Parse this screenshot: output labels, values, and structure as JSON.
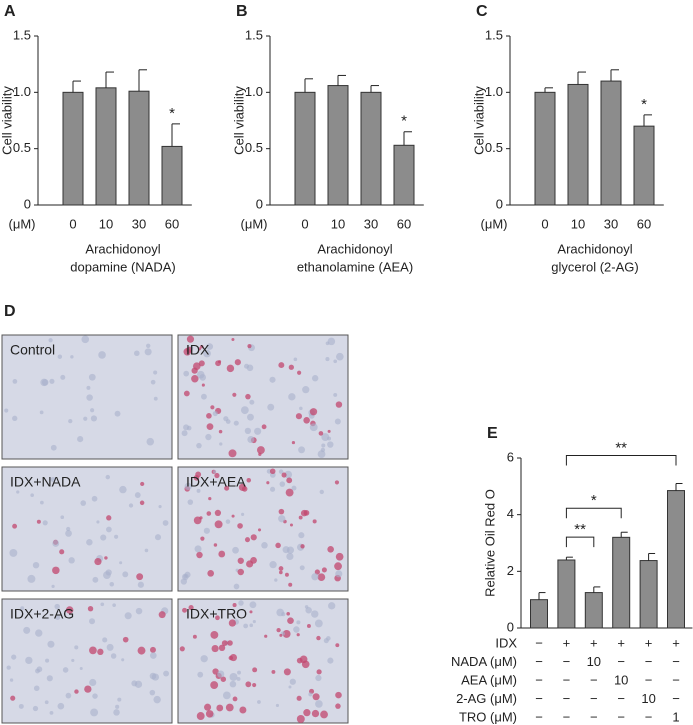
{
  "chart_data": [
    {
      "type": "bar",
      "panel_label": "A",
      "ylabel": "Cell viability",
      "unit_label": "(μM)",
      "categories": [
        "0",
        "10",
        "30",
        "60"
      ],
      "values": [
        1.0,
        1.04,
        1.01,
        0.52
      ],
      "errors": [
        0.1,
        0.14,
        0.19,
        0.2
      ],
      "significance": [
        null,
        null,
        null,
        "*"
      ],
      "xlabel": [
        "Arachidonoyl",
        "dopamine (NADA)"
      ],
      "ylim": [
        0,
        1.5
      ],
      "yticks": [
        0,
        0.5,
        {
          "value": 1,
          "label": "1.0"
        },
        1.5
      ],
      "color": "#8c8c8c"
    },
    {
      "type": "bar",
      "panel_label": "B",
      "ylabel": "Cell viability",
      "unit_label": "(μM)",
      "categories": [
        "0",
        "10",
        "30",
        "60"
      ],
      "values": [
        1.0,
        1.06,
        1.0,
        0.53
      ],
      "errors": [
        0.12,
        0.09,
        0.06,
        0.12
      ],
      "significance": [
        null,
        null,
        null,
        "*"
      ],
      "xlabel": [
        "Arachidonoyl",
        "ethanolamine (AEA)"
      ],
      "ylim": [
        0,
        1.5
      ],
      "yticks": [
        0,
        0.5,
        {
          "value": 1,
          "label": "1.0"
        },
        1.5
      ],
      "color": "#8c8c8c"
    },
    {
      "type": "bar",
      "panel_label": "C",
      "ylabel": "Cell viability",
      "unit_label": "(μM)",
      "categories": [
        "0",
        "10",
        "30",
        "60"
      ],
      "values": [
        1.0,
        1.07,
        1.1,
        0.7
      ],
      "errors": [
        0.04,
        0.11,
        0.1,
        0.1
      ],
      "significance": [
        null,
        null,
        null,
        "*"
      ],
      "xlabel": [
        "Arachidonoyl",
        "glycerol (2-AG)"
      ],
      "ylim": [
        0,
        1.5
      ],
      "yticks": [
        0,
        0.5,
        {
          "value": 1,
          "label": "1.0"
        },
        1.5
      ],
      "color": "#8c8c8c"
    },
    {
      "type": "bar",
      "panel_label": "E",
      "ylabel": "Relative Oil Red O",
      "values": [
        1.0,
        2.4,
        1.25,
        3.2,
        2.38,
        4.85
      ],
      "errors": [
        0.25,
        0.1,
        0.2,
        0.18,
        0.25,
        0.25
      ],
      "ylim": [
        0,
        6
      ],
      "yticks": [
        0,
        2,
        4,
        6
      ],
      "color": "#8c8c8c",
      "comparisons": [
        {
          "bars": [
            1,
            2
          ],
          "label": "**"
        },
        {
          "bars": [
            1,
            3
          ],
          "label": "*"
        },
        {
          "bars": [
            1,
            5
          ],
          "label": "**"
        }
      ],
      "conditions": [
        {
          "label": "IDX",
          "cells": [
            "−",
            "+",
            "+",
            "+",
            "+",
            "+"
          ]
        },
        {
          "label": "NADA (μM)",
          "cells": [
            "−",
            "−",
            "10",
            "−",
            "−",
            "−"
          ]
        },
        {
          "label": "AEA (μM)",
          "cells": [
            "−",
            "−",
            "−",
            "10",
            "−",
            "−"
          ]
        },
        {
          "label": "2-AG (μM)",
          "cells": [
            "−",
            "−",
            "−",
            "−",
            "10",
            "−"
          ]
        },
        {
          "label": "TRO (μM)",
          "cells": [
            "−",
            "−",
            "−",
            "−",
            "−",
            "1"
          ]
        }
      ]
    }
  ],
  "panel_d": {
    "panel_label": "D",
    "images": [
      "Control",
      "IDX",
      "IDX+NADA",
      "IDX+AEA",
      "IDX+2-AG",
      "IDX+TRO"
    ]
  }
}
